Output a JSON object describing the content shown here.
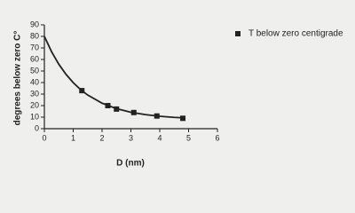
{
  "chart_data": {
    "type": "scatter",
    "xlabel": "D (nm)",
    "ylabel": "degrees below zero C°",
    "series": [
      {
        "name": "T below zero centigrade",
        "color": "#222222",
        "x": [
          1.3,
          2.2,
          2.5,
          3.1,
          3.9,
          4.8
        ],
        "values": [
          33,
          20,
          17,
          14,
          11,
          9
        ]
      }
    ],
    "fit": {
      "color": "#222222",
      "x": [
        0,
        0.25,
        0.5,
        0.75,
        1.0,
        1.25,
        1.5,
        2.0,
        2.5,
        3.0,
        3.5,
        4.0,
        4.5,
        4.8
      ],
      "values": [
        80,
        66.7,
        55.9,
        47.1,
        39.9,
        34.0,
        29.2,
        22.1,
        17.4,
        14.2,
        12.2,
        10.8,
        9.8,
        9.4
      ]
    },
    "xlim": [
      0,
      6
    ],
    "xticks": [
      0,
      1,
      2,
      3,
      4,
      5,
      6
    ],
    "ylim": [
      0,
      90
    ],
    "yticks": [
      0,
      10,
      20,
      30,
      40,
      50,
      60,
      70,
      80,
      90
    ],
    "legend": "top-right"
  }
}
